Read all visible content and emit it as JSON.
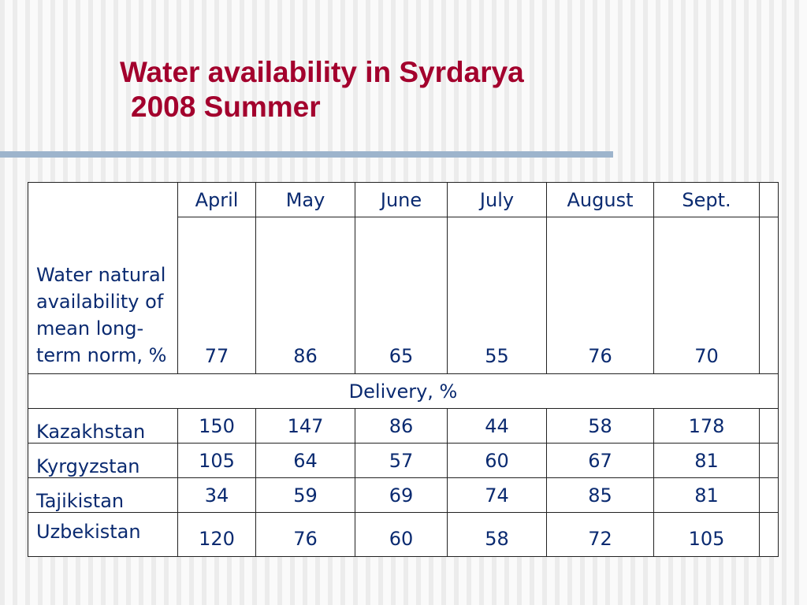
{
  "title": {
    "line1": "Water availability in Syrdarya",
    "line2": "2008 Summer"
  },
  "table": {
    "months": [
      "April",
      "May",
      "June",
      "July",
      "August",
      "Sept."
    ],
    "natural_label": "Water natural availability of mean long-term norm, %",
    "natural_values": [
      "77",
      "86",
      "65",
      "55",
      "76",
      "70"
    ],
    "delivery_header": "Delivery, %",
    "rows": [
      {
        "country": "Kazakhstan",
        "values": [
          "150",
          "147",
          "86",
          "44",
          "58",
          "178"
        ]
      },
      {
        "country": "Kyrgyzstan",
        "values": [
          "105",
          "64",
          "57",
          "60",
          "67",
          "81"
        ]
      },
      {
        "country": "Tajikistan",
        "values": [
          "34",
          "59",
          "69",
          "74",
          "85",
          "81"
        ]
      },
      {
        "country": "Uzbekistan",
        "values": [
          "120",
          "76",
          "60",
          "58",
          "72",
          "105"
        ]
      }
    ]
  }
}
